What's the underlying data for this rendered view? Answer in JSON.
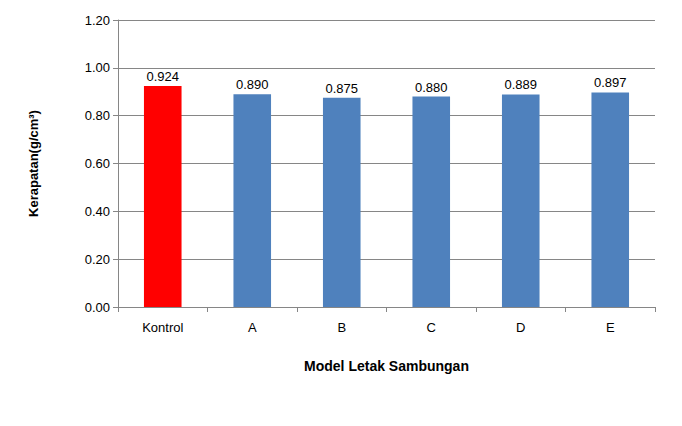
{
  "chart_data": {
    "type": "bar",
    "x_label": "Model Letak Sambungan",
    "y_label": "Kerapatan(g/cm³)",
    "categories": [
      "Kontrol",
      "A",
      "B",
      "C",
      "D",
      "E"
    ],
    "values": [
      0.924,
      0.89,
      0.875,
      0.88,
      0.889,
      0.897
    ],
    "value_labels": [
      "0.924",
      "0.890",
      "0.875",
      "0.880",
      "0.889",
      "0.897"
    ],
    "colors": [
      "#ff0000",
      "#4f81bd",
      "#4f81bd",
      "#4f81bd",
      "#4f81bd",
      "#4f81bd"
    ],
    "ylim": [
      0,
      1.2
    ],
    "yticks": [
      {
        "value": 0,
        "label": "0.00"
      },
      {
        "value": 0.2,
        "label": "0.20"
      },
      {
        "value": 0.4,
        "label": "0.40"
      },
      {
        "value": 0.6,
        "label": "0.60"
      },
      {
        "value": 0.8,
        "label": "0.80"
      },
      {
        "value": 1.0,
        "label": "1.00"
      },
      {
        "value": 1.2,
        "label": "1.20"
      }
    ],
    "grid": true,
    "data_labels": true
  }
}
